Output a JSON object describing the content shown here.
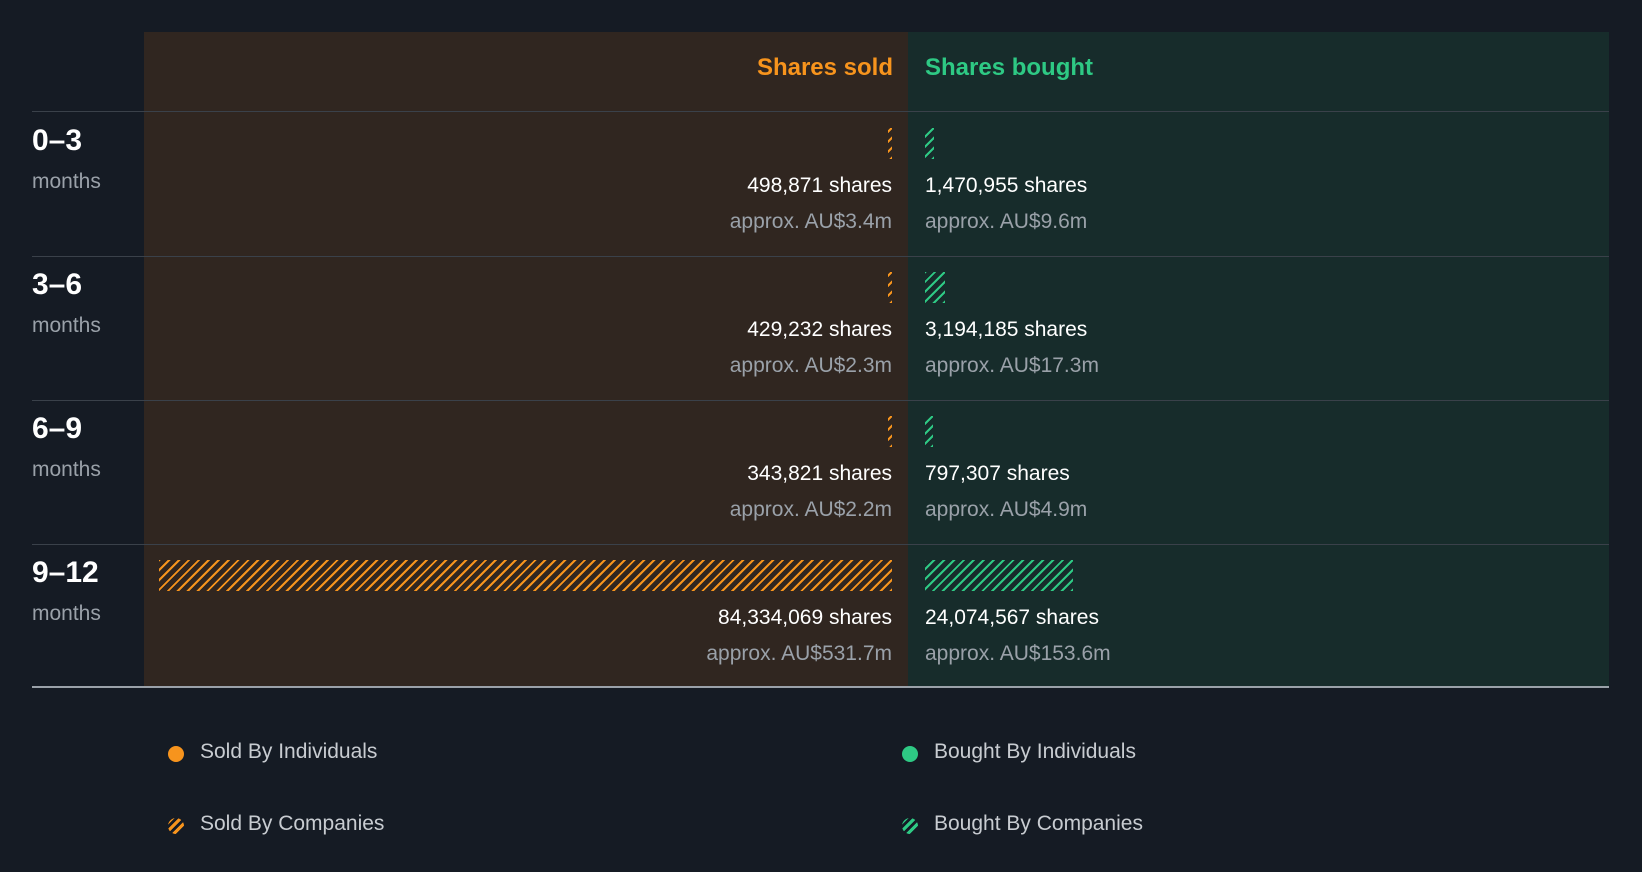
{
  "chart_data": {
    "type": "bar",
    "headers": {
      "sold": "Shares sold",
      "bought": "Shares bought"
    },
    "rows": [
      {
        "range": "0–3",
        "unit": "months",
        "sold_value": 498871,
        "sold_shares": "498,871 shares",
        "sold_approx": "approx. AU$3.4m",
        "bought_value": 1470955,
        "bought_shares": "1,470,955 shares",
        "bought_approx": "approx. AU$9.6m"
      },
      {
        "range": "3–6",
        "unit": "months",
        "sold_value": 429232,
        "sold_shares": "429,232 shares",
        "sold_approx": "approx. AU$2.3m",
        "bought_value": 3194185,
        "bought_shares": "3,194,185 shares",
        "bought_approx": "approx. AU$17.3m"
      },
      {
        "range": "6–9",
        "unit": "months",
        "sold_value": 343821,
        "sold_shares": "343,821 shares",
        "sold_approx": "approx. AU$2.2m",
        "bought_value": 797307,
        "bought_shares": "797,307 shares",
        "bought_approx": "approx. AU$4.9m"
      },
      {
        "range": "9–12",
        "unit": "months",
        "sold_value": 84334069,
        "sold_shares": "84,334,069 shares",
        "sold_approx": "approx. AU$531.7m",
        "bought_value": 24074567,
        "bought_shares": "24,074,567 shares",
        "bought_approx": "approx. AU$153.6m"
      }
    ],
    "legend": [
      {
        "label": "Sold By Individuals",
        "marker": "dot",
        "color": "#f7941d"
      },
      {
        "label": "Sold By Companies",
        "marker": "hatch",
        "color": "#f7941d"
      },
      {
        "label": "Bought By Individuals",
        "marker": "dot",
        "color": "#2ec984"
      },
      {
        "label": "Bought By Companies",
        "marker": "hatch",
        "color": "#2ec984"
      }
    ],
    "colors": {
      "sold": "#f7941d",
      "bought": "#2ec984"
    }
  }
}
